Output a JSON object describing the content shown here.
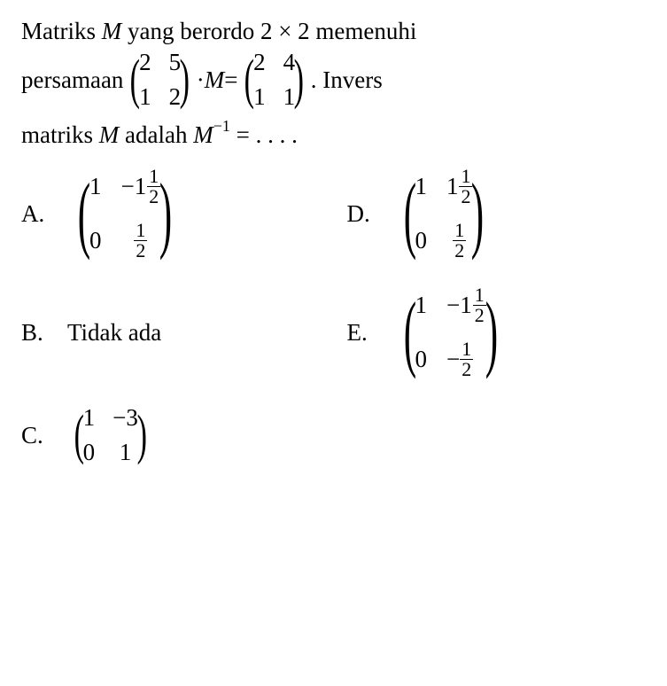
{
  "question": {
    "line1_part1": "Matriks ",
    "line1_M": "M",
    "line1_part2": " yang berordo 2 × 2 memenuhi",
    "line2_part1": "persamaan ",
    "line2_dot": " · ",
    "line2_M": "M",
    "line2_eq": " = ",
    "line2_part3": ". Invers",
    "line3_part1": "matriks ",
    "line3_M": "M",
    "line3_part2": " adalah ",
    "line3_M2": "M",
    "line3_exp": "−1",
    "line3_eq": " = . . . .",
    "matrixA": [
      "2",
      "5",
      "1",
      "2"
    ],
    "matrixB": [
      "2",
      "4",
      "1",
      "1"
    ]
  },
  "options": {
    "A": {
      "label": "A.",
      "cells": {
        "r1c1": "1",
        "r1c2_sign": "−",
        "r1c2_whole": "1",
        "r1c2_num": "1",
        "r1c2_den": "2",
        "r2c1": "0",
        "r2c2_num": "1",
        "r2c2_den": "2"
      }
    },
    "B": {
      "label": "B.",
      "text": "Tidak ada"
    },
    "C": {
      "label": "C.",
      "cells": [
        "1",
        "−3",
        "0",
        "1"
      ]
    },
    "D": {
      "label": "D.",
      "cells": {
        "r1c1": "1",
        "r1c2_whole": "1",
        "r1c2_num": "1",
        "r1c2_den": "2",
        "r2c1": "0",
        "r2c2_num": "1",
        "r2c2_den": "2"
      }
    },
    "E": {
      "label": "E.",
      "cells": {
        "r1c1": "1",
        "r1c2_sign": "−",
        "r1c2_whole": "1",
        "r1c2_num": "1",
        "r1c2_den": "2",
        "r2c1": "0",
        "r2c2_sign": "−",
        "r2c2_num": "1",
        "r2c2_den": "2"
      }
    }
  },
  "colors": {
    "text": "#000000",
    "background": "#ffffff"
  },
  "typography": {
    "font_family": "Times New Roman",
    "font_size_pt": 20
  }
}
